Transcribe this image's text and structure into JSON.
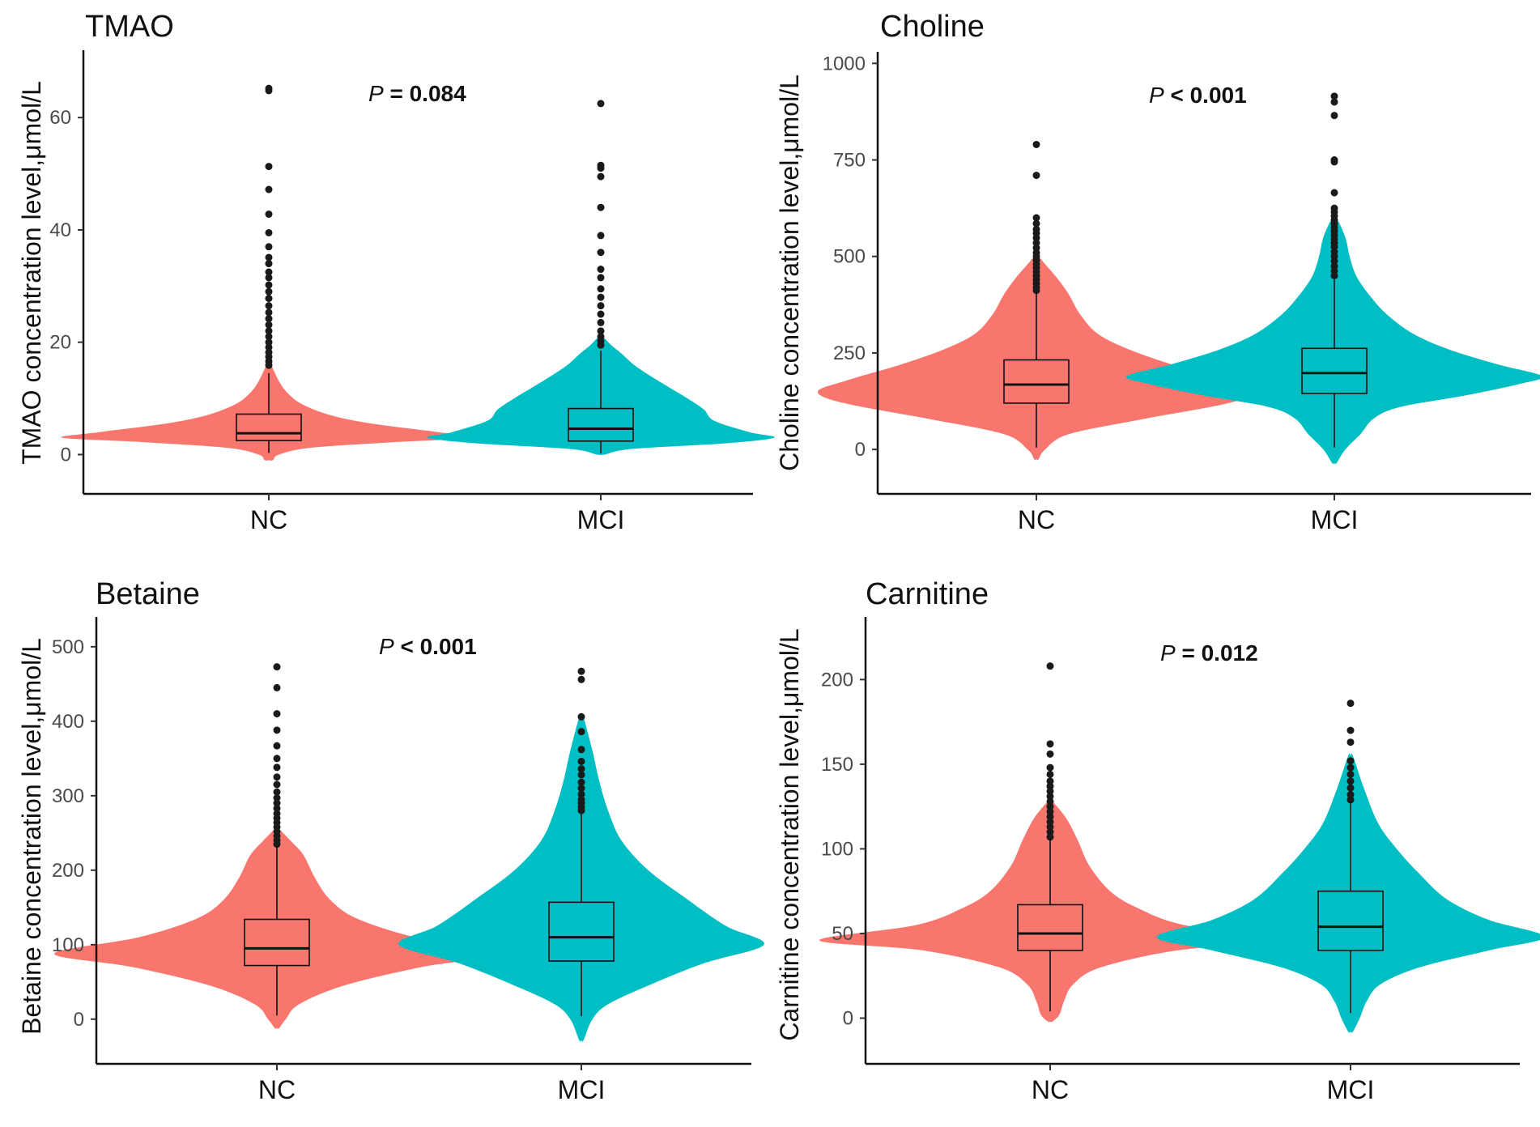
{
  "figure": {
    "background": "#ffffff"
  },
  "group_colors": {
    "NC": "#F8766D",
    "MCI": "#00BFC4"
  },
  "chart_data": [
    {
      "type": "violin+box",
      "title": "TMAO",
      "ylabel": "TMAO concentration level,μmol/L",
      "categories": [
        "NC",
        "MCI"
      ],
      "ylim": [
        -7,
        72
      ],
      "yticks": [
        0,
        20,
        40,
        60
      ],
      "annotation": {
        "symbol": "P",
        "text": " = 0.084"
      },
      "groups": [
        {
          "name": "NC",
          "color": "#F8766D",
          "box": {
            "q1": 2.5,
            "median": 3.8,
            "q3": 7.2,
            "whisker_low": 0.3,
            "whisker_high": 14.5
          },
          "violin": {
            "min": -1,
            "max": 16,
            "profile": [
              [
                -1,
                0.02
              ],
              [
                0,
                0.05
              ],
              [
                1.2,
                0.2
              ],
              [
                2.2,
                0.6
              ],
              [
                3,
                1.0
              ],
              [
                4,
                0.82
              ],
              [
                5.5,
                0.5
              ],
              [
                7,
                0.3
              ],
              [
                9,
                0.16
              ],
              [
                11,
                0.09
              ],
              [
                13,
                0.05
              ],
              [
                16,
                0.01
              ]
            ]
          },
          "outliers": [
            65.2,
            64.8,
            51.3,
            47.2,
            42.8,
            39.5,
            37.0,
            35.1,
            34.0,
            32.5,
            31.5,
            30.2,
            29.0,
            27.8,
            26.5,
            25.3,
            24.2,
            23.1,
            22.0,
            21.0,
            20.0,
            19.1,
            18.2,
            17.4,
            16.6,
            15.9
          ]
        },
        {
          "name": "MCI",
          "color": "#00BFC4",
          "box": {
            "q1": 2.4,
            "median": 4.6,
            "q3": 8.2,
            "whisker_low": 0.2,
            "whisker_high": 18.5
          },
          "violin": {
            "min": 0,
            "max": 21,
            "profile": [
              [
                0,
                0.02
              ],
              [
                1,
                0.15
              ],
              [
                2,
                0.6
              ],
              [
                3,
                0.84
              ],
              [
                4,
                0.72
              ],
              [
                6,
                0.55
              ],
              [
                8,
                0.5
              ],
              [
                10,
                0.42
              ],
              [
                12,
                0.33
              ],
              [
                14,
                0.24
              ],
              [
                16,
                0.16
              ],
              [
                18,
                0.1
              ],
              [
                19.5,
                0.05
              ],
              [
                21,
                0.01
              ]
            ]
          },
          "outliers": [
            62.5,
            51.5,
            51.0,
            49.5,
            44.0,
            39.0,
            36.0,
            33.0,
            31.5,
            29.5,
            28.0,
            26.5,
            25.0,
            23.5,
            22.0,
            21.0,
            20.2,
            19.5
          ]
        }
      ]
    },
    {
      "type": "violin+box",
      "title": "Choline",
      "ylabel": "Choline concentration level,μmol/L",
      "categories": [
        "NC",
        "MCI"
      ],
      "ylim": [
        -115,
        1030
      ],
      "yticks": [
        0,
        250,
        500,
        750,
        1000
      ],
      "annotation": {
        "symbol": "P",
        "text": " < 0.001"
      },
      "groups": [
        {
          "name": "NC",
          "color": "#F8766D",
          "box": {
            "q1": 120,
            "median": 168,
            "q3": 232,
            "whisker_low": 5,
            "whisker_high": 410
          },
          "violin": {
            "min": -25,
            "max": 500,
            "profile": [
              [
                -25,
                0.01
              ],
              [
                0,
                0.04
              ],
              [
                40,
                0.15
              ],
              [
                80,
                0.5
              ],
              [
                120,
                0.88
              ],
              [
                150,
                1.0
              ],
              [
                180,
                0.86
              ],
              [
                220,
                0.62
              ],
              [
                260,
                0.42
              ],
              [
                300,
                0.28
              ],
              [
                350,
                0.2
              ],
              [
                400,
                0.15
              ],
              [
                440,
                0.1
              ],
              [
                480,
                0.04
              ],
              [
                500,
                0.01
              ]
            ]
          },
          "outliers": [
            790,
            710,
            600,
            585,
            570,
            560,
            548,
            535,
            522,
            510,
            500,
            490,
            480,
            470,
            460,
            450,
            440,
            430,
            420,
            412
          ]
        },
        {
          "name": "MCI",
          "color": "#00BFC4",
          "box": {
            "q1": 145,
            "median": 198,
            "q3": 262,
            "whisker_low": 5,
            "whisker_high": 440
          },
          "violin": {
            "min": -35,
            "max": 600,
            "profile": [
              [
                -35,
                0.01
              ],
              [
                0,
                0.05
              ],
              [
                40,
                0.12
              ],
              [
                80,
                0.18
              ],
              [
                110,
                0.3
              ],
              [
                140,
                0.6
              ],
              [
                170,
                0.85
              ],
              [
                190,
                0.95
              ],
              [
                220,
                0.75
              ],
              [
                260,
                0.52
              ],
              [
                300,
                0.36
              ],
              [
                350,
                0.24
              ],
              [
                400,
                0.16
              ],
              [
                450,
                0.1
              ],
              [
                500,
                0.07
              ],
              [
                550,
                0.05
              ],
              [
                600,
                0.01
              ]
            ]
          },
          "outliers": [
            915,
            900,
            865,
            750,
            745,
            665,
            625,
            615,
            605,
            595,
            585,
            575,
            565,
            555,
            545,
            535,
            525,
            512,
            500,
            488,
            475,
            462,
            450
          ]
        }
      ]
    },
    {
      "type": "violin+box",
      "title": "Betaine",
      "ylabel": "Betaine concentration level,μmol/L",
      "categories": [
        "NC",
        "MCI"
      ],
      "ylim": [
        -60,
        540
      ],
      "yticks": [
        0,
        100,
        200,
        300,
        400,
        500
      ],
      "annotation": {
        "symbol": "P",
        "text": " < 0.001"
      },
      "groups": [
        {
          "name": "NC",
          "color": "#F8766D",
          "box": {
            "q1": 72,
            "median": 95,
            "q3": 134,
            "whisker_low": 5,
            "whisker_high": 232
          },
          "violin": {
            "min": -12,
            "max": 255,
            "profile": [
              [
                -12,
                0.01
              ],
              [
                0,
                0.04
              ],
              [
                20,
                0.1
              ],
              [
                45,
                0.3
              ],
              [
                70,
                0.65
              ],
              [
                88,
                1.0
              ],
              [
                110,
                0.62
              ],
              [
                135,
                0.36
              ],
              [
                160,
                0.24
              ],
              [
                190,
                0.17
              ],
              [
                220,
                0.12
              ],
              [
                240,
                0.06
              ],
              [
                255,
                0.01
              ]
            ]
          },
          "outliers": [
            473,
            445,
            410,
            388,
            367,
            350,
            338,
            325,
            315,
            305,
            297,
            290,
            283,
            276,
            270,
            264,
            258,
            252,
            246,
            240,
            235
          ]
        },
        {
          "name": "MCI",
          "color": "#00BFC4",
          "box": {
            "q1": 78,
            "median": 110,
            "q3": 157,
            "whisker_low": 4,
            "whisker_high": 275
          },
          "violin": {
            "min": -28,
            "max": 405,
            "profile": [
              [
                -28,
                0.01
              ],
              [
                0,
                0.05
              ],
              [
                20,
                0.12
              ],
              [
                45,
                0.3
              ],
              [
                75,
                0.55
              ],
              [
                100,
                0.82
              ],
              [
                125,
                0.65
              ],
              [
                160,
                0.48
              ],
              [
                200,
                0.3
              ],
              [
                240,
                0.18
              ],
              [
                280,
                0.12
              ],
              [
                320,
                0.08
              ],
              [
                360,
                0.05
              ],
              [
                405,
                0.01
              ]
            ]
          },
          "outliers": [
            467,
            456,
            406,
            386,
            362,
            346,
            336,
            328,
            318,
            310,
            302,
            295,
            290,
            285,
            280
          ]
        }
      ]
    },
    {
      "type": "violin+box",
      "title": "Carnitine",
      "ylabel": "Carnitine concentration level,μmol/L",
      "categories": [
        "NC",
        "MCI"
      ],
      "ylim": [
        -27,
        237
      ],
      "yticks": [
        0,
        50,
        100,
        150,
        200
      ],
      "annotation": {
        "symbol": "P",
        "text": " = 0.012"
      },
      "groups": [
        {
          "name": "NC",
          "color": "#F8766D",
          "box": {
            "q1": 40,
            "median": 50,
            "q3": 67,
            "whisker_low": 4,
            "whisker_high": 106
          },
          "violin": {
            "min": -2,
            "max": 128,
            "profile": [
              [
                -2,
                0.01
              ],
              [
                2,
                0.04
              ],
              [
                10,
                0.06
              ],
              [
                20,
                0.1
              ],
              [
                30,
                0.22
              ],
              [
                40,
                0.55
              ],
              [
                46,
                1.0
              ],
              [
                55,
                0.58
              ],
              [
                65,
                0.38
              ],
              [
                75,
                0.26
              ],
              [
                90,
                0.17
              ],
              [
                105,
                0.12
              ],
              [
                118,
                0.07
              ],
              [
                128,
                0.01
              ]
            ]
          },
          "outliers": [
            208,
            162,
            156,
            148,
            144,
            140,
            137,
            134,
            131,
            128,
            125,
            122,
            119,
            116,
            113,
            110,
            107
          ]
        },
        {
          "name": "MCI",
          "color": "#00BFC4",
          "box": {
            "q1": 40,
            "median": 54,
            "q3": 75,
            "whisker_low": 3,
            "whisker_high": 128
          },
          "violin": {
            "min": -8,
            "max": 155,
            "profile": [
              [
                -8,
                0.01
              ],
              [
                0,
                0.04
              ],
              [
                10,
                0.07
              ],
              [
                20,
                0.13
              ],
              [
                30,
                0.3
              ],
              [
                40,
                0.6
              ],
              [
                48,
                0.84
              ],
              [
                58,
                0.6
              ],
              [
                70,
                0.42
              ],
              [
                85,
                0.3
              ],
              [
                100,
                0.2
              ],
              [
                115,
                0.12
              ],
              [
                135,
                0.06
              ],
              [
                155,
                0.01
              ]
            ]
          },
          "outliers": [
            186,
            170,
            163,
            152,
            148,
            144,
            140,
            136,
            132,
            129
          ]
        }
      ]
    }
  ]
}
